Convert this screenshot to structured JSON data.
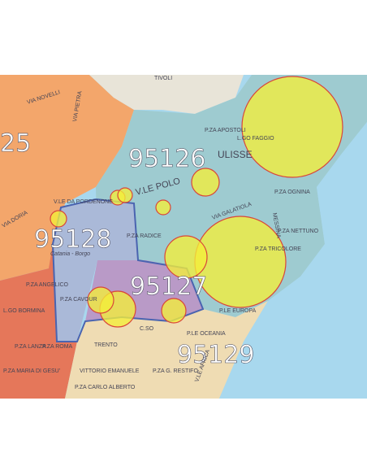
{
  "map": {
    "zones": [
      "95126",
      "95128",
      "95127",
      "95129",
      "25"
    ],
    "labels": [
      "VIA NOVELLI",
      "VIA PIETRA",
      "TIVOLI",
      "P.ZA APOSTOLI",
      "ULISSE",
      "V.LE POLO",
      "P.ZA OGNINA",
      "P.ZA NETTUNO",
      "P.ZA TRICOLORE",
      "P.ZA RADICE",
      "Catania - Borgo",
      "P.ZA ANGELICO",
      "P.ZA CAVOUR",
      "P.ZA LANZA",
      "P.ZA ROMA",
      "P.LE OCEANIA",
      "TRENTO",
      "C.SO",
      "VITTORIO EMANUELE",
      "P.ZA CARLO ALBERTO",
      "P.ZA G. RESTIFO",
      "P.LE EUROPA",
      "VIA GALATIOLA",
      "MESSINA",
      "L.GO FAGGIO",
      "V.LE DA PORDENONE",
      "VIA DORIA",
      "V.LE AFRICA",
      "P.ZA MARIA DI GESU'",
      "L.GO BORMINA"
    ]
  }
}
